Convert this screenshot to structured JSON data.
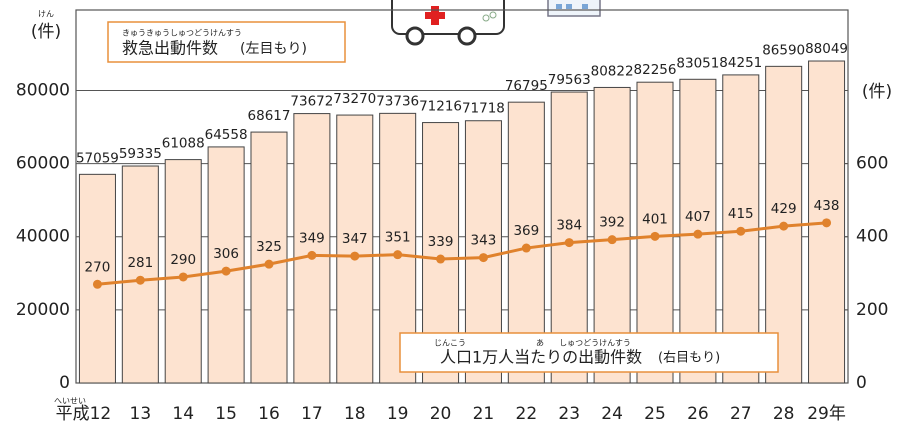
{
  "chart_data": {
    "type": "bar",
    "categories": [
      "平成12",
      "13",
      "14",
      "15",
      "16",
      "17",
      "18",
      "19",
      "20",
      "21",
      "22",
      "23",
      "24",
      "25",
      "26",
      "27",
      "28",
      "29年"
    ],
    "category_reading": "へいせい",
    "series": [
      {
        "name": "救急出動件数",
        "type": "bar",
        "color": "#fde3d0",
        "axis": "y",
        "values": [
          57059,
          59335,
          61088,
          64558,
          68617,
          73672,
          73270,
          73736,
          71216,
          71718,
          76795,
          79563,
          80822,
          82256,
          83051,
          84251,
          86590,
          88049
        ]
      },
      {
        "name": "人口1万人当たりの出動件数",
        "type": "line",
        "color": "#e0822c",
        "axis": "y2",
        "values": [
          270,
          281,
          290,
          306,
          325,
          349,
          347,
          351,
          339,
          343,
          369,
          384,
          392,
          401,
          407,
          415,
          429,
          438
        ]
      }
    ],
    "legend_notes": [
      "(左目もり)",
      "(右目もり)"
    ],
    "legend_readings": [
      "きゅうきゅうしゅつどうけんすう",
      "じんこう",
      "あ",
      "しゅつどうけんすう"
    ],
    "ylabel": "(件)",
    "ylabel_reading": "けん",
    "y2label": "(件)",
    "ylim": [
      0,
      102000
    ],
    "yticks": [
      0,
      20000,
      40000,
      60000,
      80000
    ],
    "y2lim": [
      0,
      1020
    ],
    "y2ticks": [
      0,
      200,
      400,
      600
    ],
    "grid": true
  }
}
